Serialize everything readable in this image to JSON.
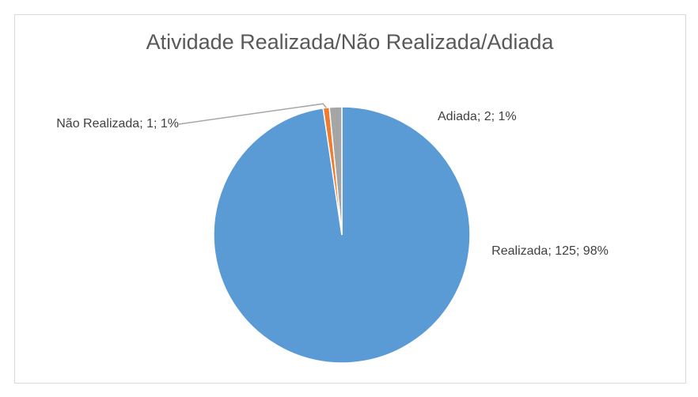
{
  "chart_data": {
    "type": "pie",
    "title": "Atividade Realizada/Não Realizada/Adiada",
    "categories": [
      "Realizada",
      "Não Realizada",
      "Adiada"
    ],
    "values": [
      125,
      1,
      2
    ],
    "value_labels": [
      "Realizada; 125; 98%",
      "Não Realizada; 1; 1%",
      "Adiada; 2; 1%"
    ],
    "colors": [
      "#5b9bd5",
      "#ed7d31",
      "#a5a5a5"
    ]
  }
}
